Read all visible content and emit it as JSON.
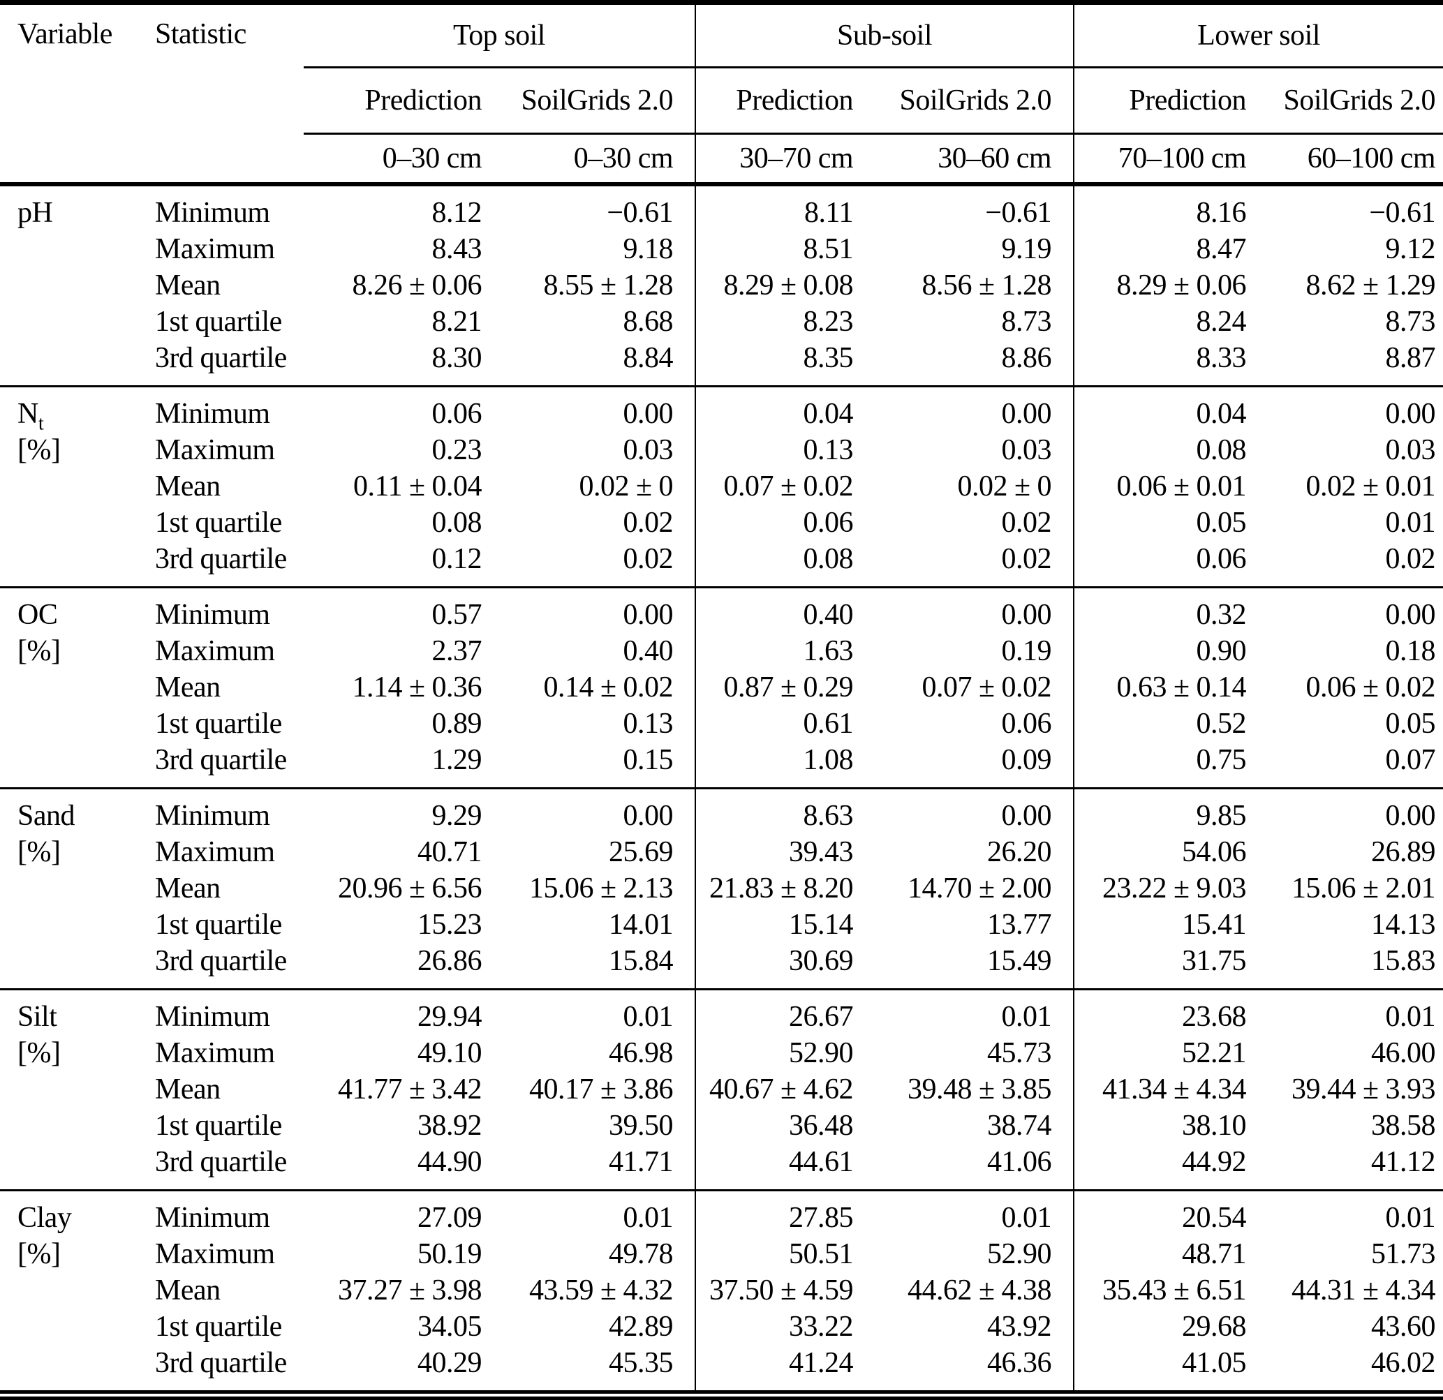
{
  "colors": {
    "text": "#000000",
    "background": "#ffffff",
    "rule": "#000000"
  },
  "header": {
    "variable": "Variable",
    "statistic": "Statistic",
    "groups": [
      {
        "label": "Top soil",
        "columns": [
          "Prediction",
          "SoilGrids 2.0"
        ],
        "depths": [
          "0–30 cm",
          "0–30 cm"
        ]
      },
      {
        "label": "Sub-soil",
        "columns": [
          "Prediction",
          "SoilGrids 2.0"
        ],
        "depths": [
          "30–70 cm",
          "30–60 cm"
        ]
      },
      {
        "label": "Lower soil",
        "columns": [
          "Prediction",
          "SoilGrids 2.0"
        ],
        "depths": [
          "70–100 cm",
          "60–100 cm"
        ]
      }
    ]
  },
  "sections": [
    {
      "variable": "pH",
      "variable_sub": "",
      "unit": "",
      "rows": [
        {
          "stat": "Minimum",
          "values": [
            "8.12",
            "−0.61",
            "8.11",
            "−0.61",
            "8.16",
            "−0.61"
          ]
        },
        {
          "stat": "Maximum",
          "values": [
            "8.43",
            "9.18",
            "8.51",
            "9.19",
            "8.47",
            "9.12"
          ]
        },
        {
          "stat": "Mean",
          "values": [
            "8.26 ± 0.06",
            "8.55 ± 1.28",
            "8.29 ± 0.08",
            "8.56 ± 1.28",
            "8.29 ± 0.06",
            "8.62 ± 1.29"
          ]
        },
        {
          "stat": "1st quartile",
          "values": [
            "8.21",
            "8.68",
            "8.23",
            "8.73",
            "8.24",
            "8.73"
          ]
        },
        {
          "stat": "3rd quartile",
          "values": [
            "8.30",
            "8.84",
            "8.35",
            "8.86",
            "8.33",
            "8.87"
          ]
        }
      ]
    },
    {
      "variable": "N",
      "variable_sub": "t",
      "unit": "[%]",
      "rows": [
        {
          "stat": "Minimum",
          "values": [
            "0.06",
            "0.00",
            "0.04",
            "0.00",
            "0.04",
            "0.00"
          ]
        },
        {
          "stat": "Maximum",
          "values": [
            "0.23",
            "0.03",
            "0.13",
            "0.03",
            "0.08",
            "0.03"
          ]
        },
        {
          "stat": "Mean",
          "values": [
            "0.11 ± 0.04",
            "0.02 ± 0",
            "0.07 ± 0.02",
            "0.02 ± 0",
            "0.06 ± 0.01",
            "0.02 ± 0.01"
          ]
        },
        {
          "stat": "1st quartile",
          "values": [
            "0.08",
            "0.02",
            "0.06",
            "0.02",
            "0.05",
            "0.01"
          ]
        },
        {
          "stat": "3rd quartile",
          "values": [
            "0.12",
            "0.02",
            "0.08",
            "0.02",
            "0.06",
            "0.02"
          ]
        }
      ]
    },
    {
      "variable": "OC",
      "variable_sub": "",
      "unit": "[%]",
      "rows": [
        {
          "stat": "Minimum",
          "values": [
            "0.57",
            "0.00",
            "0.40",
            "0.00",
            "0.32",
            "0.00"
          ]
        },
        {
          "stat": "Maximum",
          "values": [
            "2.37",
            "0.40",
            "1.63",
            "0.19",
            "0.90",
            "0.18"
          ]
        },
        {
          "stat": "Mean",
          "values": [
            "1.14 ± 0.36",
            "0.14 ± 0.02",
            "0.87 ± 0.29",
            "0.07 ± 0.02",
            "0.63 ± 0.14",
            "0.06 ± 0.02"
          ]
        },
        {
          "stat": "1st quartile",
          "values": [
            "0.89",
            "0.13",
            "0.61",
            "0.06",
            "0.52",
            "0.05"
          ]
        },
        {
          "stat": "3rd quartile",
          "values": [
            "1.29",
            "0.15",
            "1.08",
            "0.09",
            "0.75",
            "0.07"
          ]
        }
      ]
    },
    {
      "variable": "Sand",
      "variable_sub": "",
      "unit": "[%]",
      "rows": [
        {
          "stat": "Minimum",
          "values": [
            "9.29",
            "0.00",
            "8.63",
            "0.00",
            "9.85",
            "0.00"
          ]
        },
        {
          "stat": "Maximum",
          "values": [
            "40.71",
            "25.69",
            "39.43",
            "26.20",
            "54.06",
            "26.89"
          ]
        },
        {
          "stat": "Mean",
          "values": [
            "20.96 ± 6.56",
            "15.06 ± 2.13",
            "21.83 ± 8.20",
            "14.70 ± 2.00",
            "23.22 ± 9.03",
            "15.06 ± 2.01"
          ]
        },
        {
          "stat": "1st quartile",
          "values": [
            "15.23",
            "14.01",
            "15.14",
            "13.77",
            "15.41",
            "14.13"
          ]
        },
        {
          "stat": "3rd quartile",
          "values": [
            "26.86",
            "15.84",
            "30.69",
            "15.49",
            "31.75",
            "15.83"
          ]
        }
      ]
    },
    {
      "variable": "Silt",
      "variable_sub": "",
      "unit": "[%]",
      "rows": [
        {
          "stat": "Minimum",
          "values": [
            "29.94",
            "0.01",
            "26.67",
            "0.01",
            "23.68",
            "0.01"
          ]
        },
        {
          "stat": "Maximum",
          "values": [
            "49.10",
            "46.98",
            "52.90",
            "45.73",
            "52.21",
            "46.00"
          ]
        },
        {
          "stat": "Mean",
          "values": [
            "41.77 ± 3.42",
            "40.17 ± 3.86",
            "40.67 ± 4.62",
            "39.48 ± 3.85",
            "41.34 ± 4.34",
            "39.44 ± 3.93"
          ]
        },
        {
          "stat": "1st quartile",
          "values": [
            "38.92",
            "39.50",
            "36.48",
            "38.74",
            "38.10",
            "38.58"
          ]
        },
        {
          "stat": "3rd quartile",
          "values": [
            "44.90",
            "41.71",
            "44.61",
            "41.06",
            "44.92",
            "41.12"
          ]
        }
      ]
    },
    {
      "variable": "Clay",
      "variable_sub": "",
      "unit": "[%]",
      "rows": [
        {
          "stat": "Minimum",
          "values": [
            "27.09",
            "0.01",
            "27.85",
            "0.01",
            "20.54",
            "0.01"
          ]
        },
        {
          "stat": "Maximum",
          "values": [
            "50.19",
            "49.78",
            "50.51",
            "52.90",
            "48.71",
            "51.73"
          ]
        },
        {
          "stat": "Mean",
          "values": [
            "37.27 ± 3.98",
            "43.59 ± 4.32",
            "37.50 ± 4.59",
            "44.62 ± 4.38",
            "35.43 ± 6.51",
            "44.31 ± 4.34"
          ]
        },
        {
          "stat": "1st quartile",
          "values": [
            "34.05",
            "42.89",
            "33.22",
            "43.92",
            "29.68",
            "43.60"
          ]
        },
        {
          "stat": "3rd quartile",
          "values": [
            "40.29",
            "45.35",
            "41.24",
            "46.36",
            "41.05",
            "46.02"
          ]
        }
      ]
    }
  ]
}
